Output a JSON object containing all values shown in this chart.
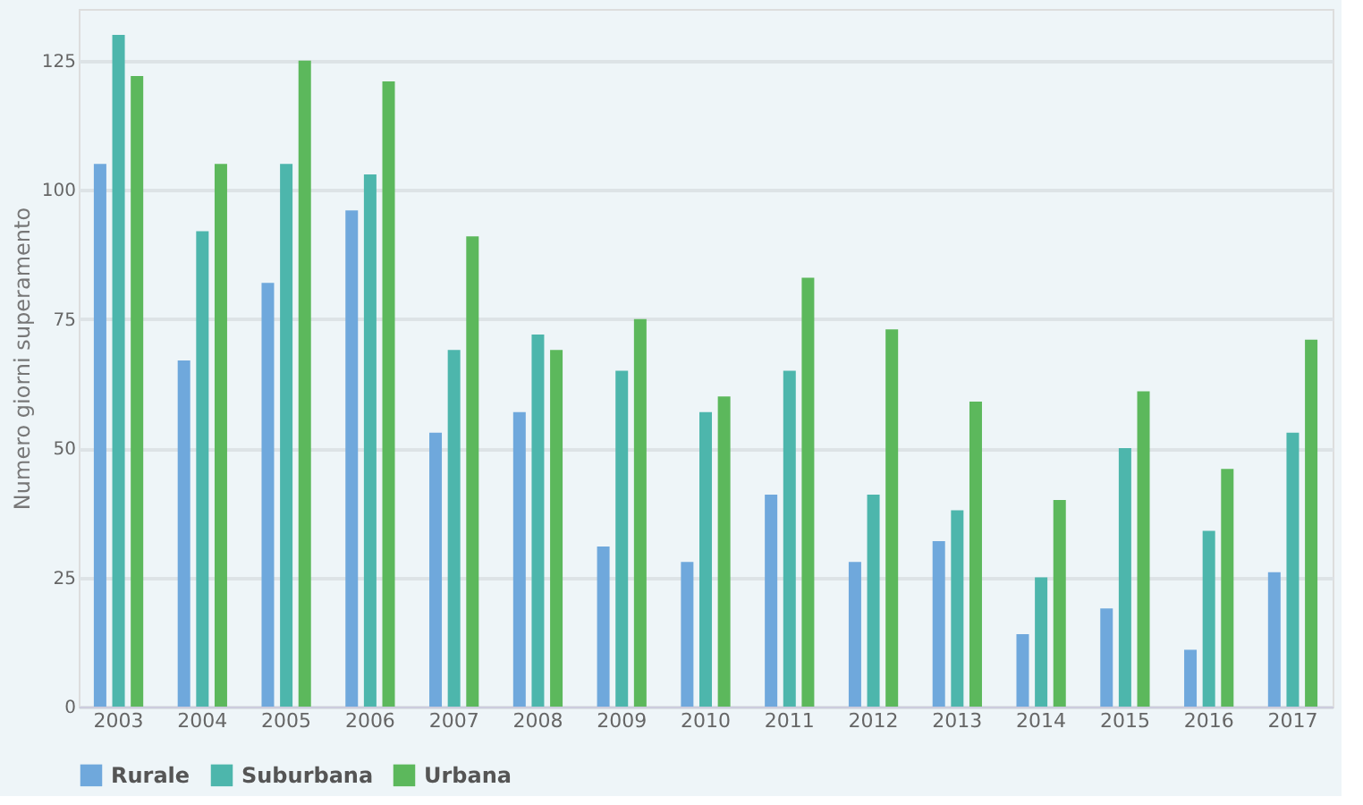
{
  "chart_data": {
    "type": "bar",
    "ylabel": "Numero giorni superamento",
    "categories": [
      "2003",
      "2004",
      "2005",
      "2006",
      "2007",
      "2008",
      "2009",
      "2010",
      "2011",
      "2012",
      "2013",
      "2014",
      "2015",
      "2016",
      "2017"
    ],
    "series": [
      {
        "name": "Rurale",
        "color": "#6fa8dc",
        "values": [
          105,
          67,
          82,
          96,
          53,
          57,
          31,
          28,
          41,
          28,
          32,
          14,
          19,
          11,
          26
        ]
      },
      {
        "name": "Suburbana",
        "color": "#4db6ac",
        "values": [
          130,
          92,
          105,
          103,
          69,
          72,
          65,
          57,
          65,
          41,
          38,
          25,
          50,
          34,
          53
        ]
      },
      {
        "name": "Urbana",
        "color": "#5cb85c",
        "values": [
          122,
          105,
          125,
          121,
          91,
          69,
          75,
          60,
          83,
          73,
          59,
          40,
          61,
          46,
          71
        ]
      }
    ],
    "ylim": [
      0,
      135
    ],
    "yticks": [
      0,
      25,
      50,
      75,
      100,
      125
    ],
    "grid": "y",
    "legend": "bottom"
  }
}
